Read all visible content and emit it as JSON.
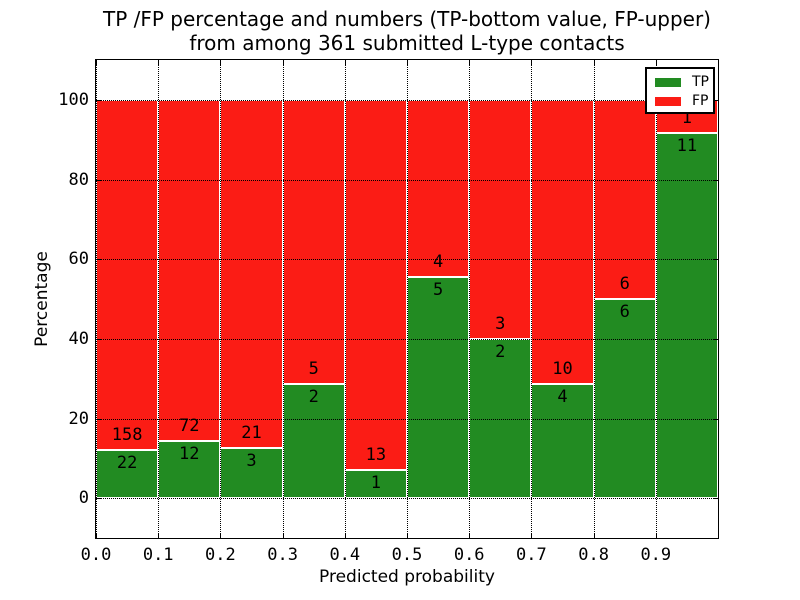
{
  "title": {
    "line1": "TP /FP percentage and numbers (TP-bottom value, FP-upper)",
    "line2": "from among 361 submitted L-type contacts"
  },
  "legend": {
    "entries": [
      {
        "label": "TP",
        "color": "#228b22"
      },
      {
        "label": "FP",
        "color": "#fb1c15"
      }
    ],
    "position": "upper right"
  },
  "colors": {
    "tp": "#228b22",
    "fp": "#fb1c15",
    "bar_edge": "#ffffff",
    "axis": "#000000",
    "grid": "#000000",
    "background": "#ffffff",
    "text": "#000000"
  },
  "chart_data": {
    "type": "bar",
    "stacked": true,
    "normalized_to_percent": true,
    "title": "TP /FP percentage and numbers (TP-bottom value, FP-upper)\nfrom among 361 submitted L-type contacts",
    "xlabel": "Predicted probability",
    "ylabel": "Percentage",
    "xlim": [
      0.0,
      1.0
    ],
    "ylim": [
      -10,
      110
    ],
    "grid": true,
    "grid_style": "dotted",
    "legend_position": "upper right",
    "x_ticks": [
      0.0,
      0.1,
      0.2,
      0.3,
      0.4,
      0.5,
      0.6,
      0.7,
      0.8,
      0.9
    ],
    "x_tick_labels": [
      "0.0",
      "0.1",
      "0.2",
      "0.3",
      "0.4",
      "0.5",
      "0.6",
      "0.7",
      "0.8",
      "0.9"
    ],
    "y_ticks": [
      0,
      20,
      40,
      60,
      80,
      100
    ],
    "y_tick_labels": [
      "0",
      "20",
      "40",
      "60",
      "80",
      "100"
    ],
    "bin_width": 0.1,
    "bin_starts": [
      0.0,
      0.1,
      0.2,
      0.3,
      0.4,
      0.5,
      0.6,
      0.7,
      0.8,
      0.9
    ],
    "series": [
      {
        "name": "TP",
        "color": "#228b22",
        "counts": [
          22,
          12,
          3,
          2,
          1,
          5,
          2,
          4,
          6,
          11
        ]
      },
      {
        "name": "FP",
        "color": "#fb1c15",
        "counts": [
          158,
          72,
          21,
          5,
          13,
          4,
          3,
          10,
          6,
          1
        ]
      }
    ],
    "tp_pct": [
      12.2,
      14.3,
      12.5,
      28.6,
      7.1,
      55.6,
      40.0,
      28.6,
      50.0,
      91.7
    ],
    "fp_pct": [
      87.8,
      85.7,
      87.5,
      71.4,
      92.9,
      44.4,
      60.0,
      71.4,
      50.0,
      8.3
    ],
    "total_contacts": 361
  }
}
